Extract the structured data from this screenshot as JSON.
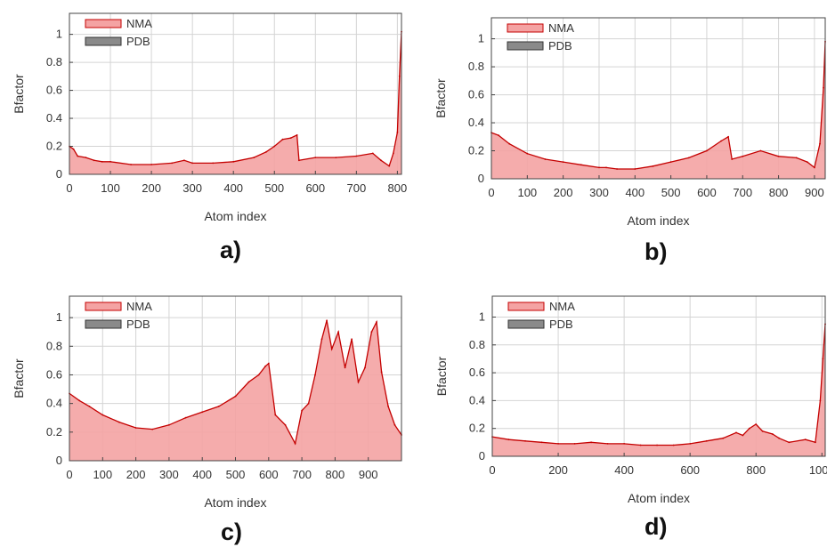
{
  "chart_data": [
    {
      "type": "area",
      "panel_label": "a)",
      "xlabel": "Atom index",
      "ylabel": "Bfactor",
      "xlim": [
        0,
        810
      ],
      "ylim": [
        0,
        1.15
      ],
      "xticks": [
        0,
        100,
        200,
        300,
        400,
        500,
        600,
        700,
        800
      ],
      "yticks": [
        0,
        0.2,
        0.4,
        0.6,
        0.8,
        1
      ],
      "grid": true,
      "legend": {
        "position": "top-left",
        "entries": [
          "NMA",
          "PDB"
        ]
      },
      "series": [
        {
          "name": "NMA",
          "x": [
            0,
            10,
            20,
            40,
            60,
            80,
            100,
            150,
            200,
            250,
            280,
            300,
            350,
            400,
            450,
            480,
            500,
            520,
            540,
            555,
            560,
            600,
            650,
            700,
            740,
            760,
            780,
            790,
            800,
            805,
            810
          ],
          "y": [
            0.2,
            0.18,
            0.13,
            0.12,
            0.1,
            0.09,
            0.09,
            0.07,
            0.07,
            0.08,
            0.1,
            0.08,
            0.08,
            0.09,
            0.12,
            0.16,
            0.2,
            0.25,
            0.26,
            0.28,
            0.1,
            0.12,
            0.12,
            0.13,
            0.15,
            0.1,
            0.06,
            0.15,
            0.3,
            0.7,
            1.02
          ]
        },
        {
          "name": "PDB",
          "x": [],
          "y": []
        }
      ]
    },
    {
      "type": "area",
      "panel_label": "b)",
      "xlabel": "Atom index",
      "ylabel": "Bfactor",
      "xlim": [
        0,
        930
      ],
      "ylim": [
        0,
        1.15
      ],
      "xticks": [
        0,
        100,
        200,
        300,
        400,
        500,
        600,
        700,
        800,
        900
      ],
      "yticks": [
        0,
        0.2,
        0.4,
        0.6,
        0.8,
        1
      ],
      "grid": true,
      "legend": {
        "position": "top-left",
        "entries": [
          "NMA",
          "PDB"
        ]
      },
      "series": [
        {
          "name": "NMA",
          "x": [
            0,
            20,
            50,
            100,
            150,
            200,
            250,
            300,
            320,
            350,
            400,
            450,
            500,
            550,
            600,
            640,
            660,
            670,
            700,
            750,
            800,
            850,
            880,
            900,
            915,
            925,
            930
          ],
          "y": [
            0.33,
            0.31,
            0.25,
            0.18,
            0.14,
            0.12,
            0.1,
            0.08,
            0.08,
            0.07,
            0.07,
            0.09,
            0.12,
            0.15,
            0.2,
            0.27,
            0.3,
            0.14,
            0.16,
            0.2,
            0.16,
            0.15,
            0.12,
            0.08,
            0.25,
            0.65,
            0.98
          ]
        },
        {
          "name": "PDB",
          "x": [],
          "y": []
        }
      ]
    },
    {
      "type": "area",
      "panel_label": "c)",
      "xlabel": "Atom index",
      "ylabel": "Bfactor",
      "xlim": [
        0,
        1000
      ],
      "ylim": [
        0,
        1.15
      ],
      "xticks": [
        0,
        100,
        200,
        300,
        400,
        500,
        600,
        700,
        800,
        900
      ],
      "yticks": [
        0,
        0.2,
        0.4,
        0.6,
        0.8,
        1
      ],
      "grid": true,
      "legend": {
        "position": "top-left",
        "entries": [
          "NMA",
          "PDB"
        ]
      },
      "series": [
        {
          "name": "NMA",
          "x": [
            0,
            30,
            60,
            100,
            150,
            200,
            250,
            300,
            350,
            400,
            450,
            500,
            540,
            570,
            590,
            600,
            620,
            650,
            680,
            700,
            720,
            740,
            760,
            775,
            790,
            810,
            830,
            850,
            870,
            890,
            910,
            925,
            940,
            960,
            980,
            1000
          ],
          "y": [
            0.47,
            0.42,
            0.38,
            0.32,
            0.27,
            0.23,
            0.22,
            0.25,
            0.3,
            0.34,
            0.38,
            0.45,
            0.55,
            0.6,
            0.66,
            0.68,
            0.32,
            0.25,
            0.12,
            0.35,
            0.4,
            0.6,
            0.85,
            0.98,
            0.78,
            0.9,
            0.65,
            0.85,
            0.55,
            0.65,
            0.9,
            0.97,
            0.62,
            0.38,
            0.25,
            0.18
          ]
        },
        {
          "name": "PDB",
          "x": [],
          "y": []
        }
      ]
    },
    {
      "type": "area",
      "panel_label": "d)",
      "xlabel": "Atom index",
      "ylabel": "Bfactor",
      "xlim": [
        0,
        1010
      ],
      "ylim": [
        0,
        1.15
      ],
      "xticks": [
        0,
        200,
        400,
        600,
        800,
        1000
      ],
      "yticks": [
        0,
        0.2,
        0.4,
        0.6,
        0.8,
        1
      ],
      "grid": true,
      "legend": {
        "position": "top-left",
        "entries": [
          "NMA",
          "PDB"
        ]
      },
      "series": [
        {
          "name": "NMA",
          "x": [
            0,
            50,
            100,
            150,
            200,
            250,
            300,
            350,
            400,
            450,
            500,
            550,
            600,
            650,
            700,
            740,
            760,
            780,
            800,
            820,
            850,
            870,
            900,
            950,
            980,
            995,
            1003,
            1010
          ],
          "y": [
            0.14,
            0.12,
            0.11,
            0.1,
            0.09,
            0.09,
            0.1,
            0.09,
            0.09,
            0.08,
            0.08,
            0.08,
            0.09,
            0.11,
            0.13,
            0.17,
            0.15,
            0.2,
            0.23,
            0.18,
            0.16,
            0.13,
            0.1,
            0.12,
            0.1,
            0.4,
            0.7,
            0.95
          ]
        },
        {
          "name": "PDB",
          "x": [],
          "y": []
        }
      ]
    }
  ]
}
